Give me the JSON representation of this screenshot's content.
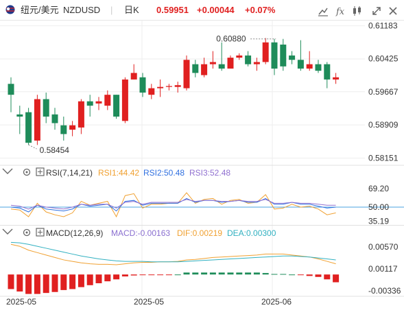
{
  "header": {
    "symbol_name": "纽元/美元",
    "symbol_code": "NZDUSD",
    "timeframe": "日K",
    "last_price": "0.59951",
    "change": "+0.00044",
    "change_pct": "+0.07%",
    "up_color": "#e02020",
    "down_color": "#1e8c5a",
    "toolbar_icons": [
      "chart-settings-icon",
      "indicator-icon",
      "candle-type-icon",
      "expand-icon",
      "close-icon"
    ]
  },
  "rsi_legend": {
    "name": "RSI(7,14,21)",
    "rsi1": "RSI1:44.42",
    "rsi2": "RSI2:50.48",
    "rsi3": "RSI3:52.48"
  },
  "macd_legend": {
    "name": "MACD(12,26,9)",
    "macd": "MACD:-0.00163",
    "dif": "DIF:0.00219",
    "dea": "DEA:0.00300"
  },
  "chart_data": [
    {
      "type": "candlestick",
      "y_ticks": [
        "0.61183",
        "0.60425",
        "0.59667",
        "0.58909",
        "0.58151"
      ],
      "ylim": [
        0.58,
        0.613
      ],
      "annotations": [
        {
          "label": "0.60880",
          "value": 0.6088
        },
        {
          "label": "0.58454",
          "value": 0.58454
        }
      ],
      "x_labels": [
        "2025-05",
        "2025-05",
        "2025-06"
      ],
      "grid": true,
      "candles": [
        {
          "o": 0.5985,
          "h": 0.6,
          "l": 0.592,
          "c": 0.596
        },
        {
          "o": 0.5915,
          "h": 0.5935,
          "l": 0.587,
          "c": 0.591
        },
        {
          "o": 0.592,
          "h": 0.593,
          "l": 0.5845,
          "c": 0.585
        },
        {
          "o": 0.5855,
          "h": 0.596,
          "l": 0.5845,
          "c": 0.595
        },
        {
          "o": 0.595,
          "h": 0.5965,
          "l": 0.5895,
          "c": 0.591
        },
        {
          "o": 0.5915,
          "h": 0.593,
          "l": 0.588,
          "c": 0.5895
        },
        {
          "o": 0.589,
          "h": 0.591,
          "l": 0.5855,
          "c": 0.587
        },
        {
          "o": 0.588,
          "h": 0.59,
          "l": 0.5865,
          "c": 0.589
        },
        {
          "o": 0.5885,
          "h": 0.595,
          "l": 0.587,
          "c": 0.5945
        },
        {
          "o": 0.5945,
          "h": 0.596,
          "l": 0.591,
          "c": 0.5935
        },
        {
          "o": 0.594,
          "h": 0.5955,
          "l": 0.5925,
          "c": 0.5945
        },
        {
          "o": 0.5935,
          "h": 0.597,
          "l": 0.5925,
          "c": 0.596
        },
        {
          "o": 0.596,
          "h": 0.596,
          "l": 0.5905,
          "c": 0.591
        },
        {
          "o": 0.59,
          "h": 0.6,
          "l": 0.5895,
          "c": 0.5995
        },
        {
          "o": 0.5995,
          "h": 0.603,
          "l": 0.5995,
          "c": 0.601
        },
        {
          "o": 0.6,
          "h": 0.601,
          "l": 0.5955,
          "c": 0.5965
        },
        {
          "o": 0.596,
          "h": 0.5985,
          "l": 0.595,
          "c": 0.5975
        },
        {
          "o": 0.5975,
          "h": 0.5995,
          "l": 0.5955,
          "c": 0.5978
        },
        {
          "o": 0.5978,
          "h": 0.5985,
          "l": 0.597,
          "c": 0.598
        },
        {
          "o": 0.5978,
          "h": 0.599,
          "l": 0.5965,
          "c": 0.5982
        },
        {
          "o": 0.5975,
          "h": 0.605,
          "l": 0.597,
          "c": 0.604
        },
        {
          "o": 0.603,
          "h": 0.604,
          "l": 0.6,
          "c": 0.601
        },
        {
          "o": 0.6005,
          "h": 0.6045,
          "l": 0.6,
          "c": 0.603
        },
        {
          "o": 0.603,
          "h": 0.606,
          "l": 0.602,
          "c": 0.6035
        },
        {
          "o": 0.603,
          "h": 0.608,
          "l": 0.6015,
          "c": 0.602
        },
        {
          "o": 0.602,
          "h": 0.605,
          "l": 0.602,
          "c": 0.6045
        },
        {
          "o": 0.6045,
          "h": 0.6055,
          "l": 0.604,
          "c": 0.605
        },
        {
          "o": 0.605,
          "h": 0.606,
          "l": 0.6025,
          "c": 0.603
        },
        {
          "o": 0.603,
          "h": 0.6045,
          "l": 0.6015,
          "c": 0.6035
        },
        {
          "o": 0.6035,
          "h": 0.609,
          "l": 0.603,
          "c": 0.608
        },
        {
          "o": 0.608,
          "h": 0.6088,
          "l": 0.6005,
          "c": 0.602
        },
        {
          "o": 0.6075,
          "h": 0.6088,
          "l": 0.6015,
          "c": 0.6025
        },
        {
          "o": 0.605,
          "h": 0.606,
          "l": 0.603,
          "c": 0.604
        },
        {
          "o": 0.604,
          "h": 0.6085,
          "l": 0.6015,
          "c": 0.602
        },
        {
          "o": 0.602,
          "h": 0.606,
          "l": 0.6015,
          "c": 0.603
        },
        {
          "o": 0.603,
          "h": 0.604,
          "l": 0.601,
          "c": 0.6015
        },
        {
          "o": 0.603,
          "h": 0.6035,
          "l": 0.5975,
          "c": 0.5995
        },
        {
          "o": 0.5995,
          "h": 0.601,
          "l": 0.5985,
          "c": 0.6
        }
      ]
    },
    {
      "type": "line",
      "title": "RSI(7,14,21)",
      "y_ticks": [
        "69.20",
        "50.00",
        "35.19"
      ],
      "ylim": [
        30,
        75
      ],
      "reference_line": 50,
      "series": [
        {
          "name": "RSI1",
          "color": "#f0a030",
          "values": [
            48,
            47,
            40,
            54,
            45,
            42,
            40,
            44,
            56,
            52,
            54,
            56,
            40,
            62,
            64,
            49,
            53,
            53,
            54,
            54,
            65,
            54,
            58,
            59,
            53,
            57,
            58,
            54,
            55,
            63,
            48,
            49,
            53,
            50,
            51,
            48,
            42,
            44
          ]
        },
        {
          "name": "RSI2",
          "color": "#3070e0",
          "values": [
            50,
            49,
            45,
            52,
            48,
            47,
            46,
            48,
            53,
            51,
            52,
            53,
            46,
            56,
            57,
            52,
            54,
            54,
            54,
            54,
            59,
            55,
            57,
            57,
            55,
            56,
            57,
            55,
            55,
            59,
            53,
            53,
            55,
            53,
            53,
            51,
            49,
            50
          ]
        },
        {
          "name": "RSI3",
          "color": "#9070d0",
          "values": [
            52,
            51,
            48,
            52,
            50,
            49,
            48,
            50,
            53,
            52,
            53,
            53,
            49,
            55,
            56,
            53,
            55,
            55,
            55,
            55,
            58,
            56,
            57,
            57,
            56,
            56,
            57,
            56,
            56,
            58,
            54,
            54,
            55,
            54,
            54,
            53,
            52,
            52
          ]
        }
      ]
    },
    {
      "type": "bar+line",
      "title": "MACD(12,26,9)",
      "y_ticks": [
        "0.00570",
        "0.00117",
        "-0.00336"
      ],
      "ylim": [
        -0.0042,
        0.0068
      ],
      "histogram": [
        -0.003,
        -0.0035,
        -0.004,
        -0.004,
        -0.0038,
        -0.0036,
        -0.0032,
        -0.003,
        -0.0026,
        -0.0022,
        -0.0018,
        -0.0014,
        -0.001,
        -0.0004,
        -0.0002,
        -0.0001,
        -0.0001,
        -0.0001,
        -0.0001,
        0.0,
        0.0004,
        0.0004,
        0.0004,
        0.0004,
        0.0004,
        0.0004,
        0.0004,
        0.0004,
        0.0004,
        0.0003,
        0.0001,
        0.0001,
        0.0,
        -0.0001,
        -0.0003,
        -0.0005,
        -0.001,
        -0.0016
      ],
      "series": [
        {
          "name": "DIF",
          "color": "#f0a030",
          "values": [
            0.0062,
            0.0058,
            0.005,
            0.0045,
            0.004,
            0.0035,
            0.003,
            0.0027,
            0.0024,
            0.0022,
            0.0021,
            0.0021,
            0.002,
            0.0022,
            0.0024,
            0.0025,
            0.0025,
            0.0026,
            0.0026,
            0.0027,
            0.003,
            0.0031,
            0.0033,
            0.0035,
            0.0036,
            0.0037,
            0.0038,
            0.0039,
            0.004,
            0.0042,
            0.0042,
            0.0042,
            0.004,
            0.0038,
            0.0036,
            0.0032,
            0.0027,
            0.0022
          ]
        },
        {
          "name": "DEA",
          "color": "#30b0c0",
          "values": [
            0.0066,
            0.0065,
            0.0062,
            0.0058,
            0.0054,
            0.005,
            0.0046,
            0.0042,
            0.0038,
            0.0035,
            0.0032,
            0.003,
            0.0028,
            0.0027,
            0.0027,
            0.0027,
            0.0026,
            0.0026,
            0.0026,
            0.0026,
            0.0027,
            0.0028,
            0.0029,
            0.003,
            0.0031,
            0.0032,
            0.0033,
            0.0034,
            0.0035,
            0.0036,
            0.0037,
            0.0038,
            0.0038,
            0.0037,
            0.0036,
            0.0034,
            0.0032,
            0.003
          ]
        }
      ]
    }
  ]
}
